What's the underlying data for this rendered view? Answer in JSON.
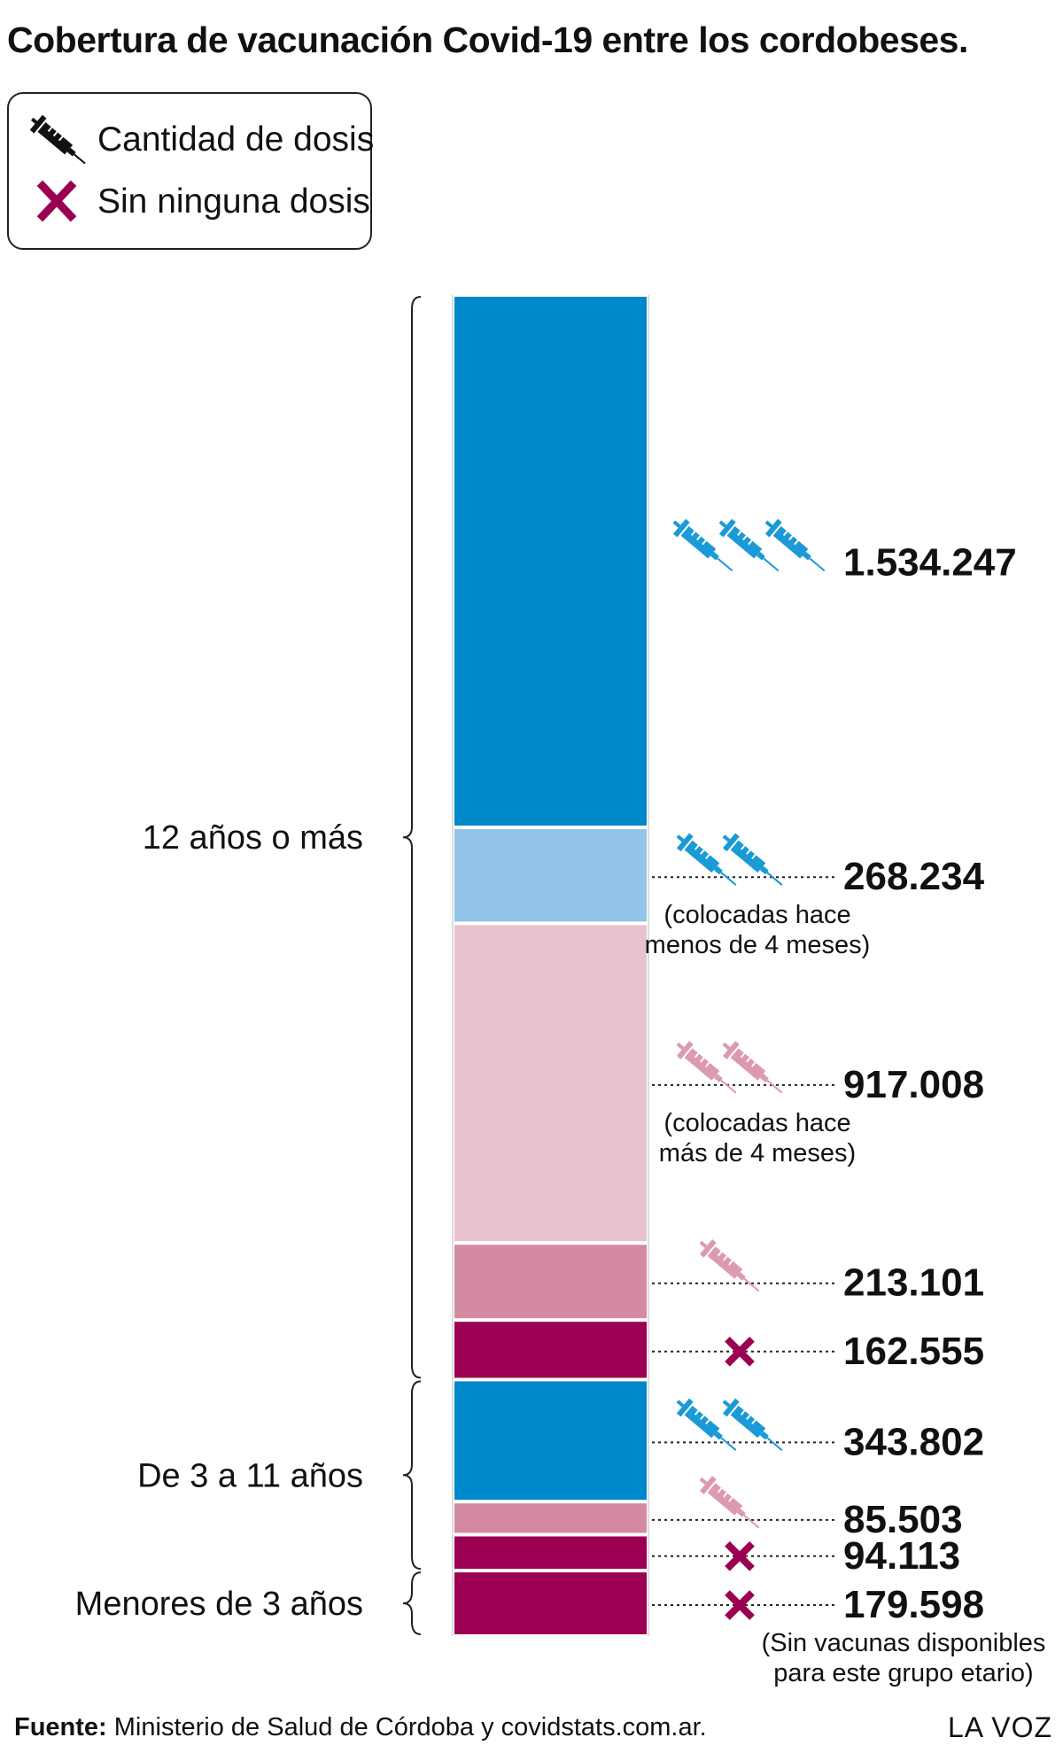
{
  "title": "Cobertura de vacunación Covid-19 entre los cordobeses.",
  "legend": {
    "items": [
      {
        "icon": "syringe-icon",
        "label": "Cantidad de dosis",
        "color": "#111111"
      },
      {
        "icon": "x-mark-icon",
        "label": "Sin ninguna dosis",
        "color": "#9c0052"
      }
    ]
  },
  "colors": {
    "blue_dark": "#0088cc",
    "blue_light": "#93c5ea",
    "pink_light": "#e8c3cd",
    "pink_mid": "#d48aa3",
    "magenta": "#9c0052"
  },
  "chart_data": {
    "type": "stacked-bar",
    "groups": [
      {
        "label": "12 años o más"
      },
      {
        "label": "De 3 a 11 años"
      },
      {
        "label": "Menores de 3 años"
      }
    ],
    "segments": [
      {
        "group": "12 años o más",
        "value": 1534247,
        "label": "1.534.247",
        "doses": 3,
        "icon_color": "#1a9ad6",
        "color": "#0088cc",
        "note": ""
      },
      {
        "group": "12 años o más",
        "value": 268234,
        "label": "268.234",
        "doses": 2,
        "icon_color": "#1a9ad6",
        "color": "#93c5ea",
        "note": "(colocadas hace\nmenos de 4 meses)"
      },
      {
        "group": "12 años o más",
        "value": 917008,
        "label": "917.008",
        "doses": 2,
        "icon_color": "#dc9ab0",
        "color": "#e8c3cd",
        "note": "(colocadas hace\nmás de 4 meses)"
      },
      {
        "group": "12 años o más",
        "value": 213101,
        "label": "213.101",
        "doses": 1,
        "icon_color": "#dc9ab0",
        "color": "#d48aa3",
        "note": ""
      },
      {
        "group": "12 años o más",
        "value": 162555,
        "label": "162.555",
        "doses": 0,
        "icon_color": "#9c0052",
        "color": "#9c0052",
        "note": ""
      },
      {
        "group": "De 3 a 11 años",
        "value": 343802,
        "label": "343.802",
        "doses": 2,
        "icon_color": "#1a9ad6",
        "color": "#0088cc",
        "note": ""
      },
      {
        "group": "De 3 a 11 años",
        "value": 85503,
        "label": "85.503",
        "doses": 1,
        "icon_color": "#dc9ab0",
        "color": "#d48aa3",
        "note": ""
      },
      {
        "group": "De 3 a 11 años",
        "value": 94113,
        "label": "94.113",
        "doses": 0,
        "icon_color": "#9c0052",
        "color": "#9c0052",
        "note": ""
      },
      {
        "group": "Menores de 3 años",
        "value": 179598,
        "label": "179.598",
        "doses": 0,
        "icon_color": "#9c0052",
        "color": "#9c0052",
        "note": "(Sin vacunas disponibles\npara este grupo etario)"
      }
    ]
  },
  "footer": {
    "source_prefix": "Fuente:",
    "source_text": " Ministerio de Salud de Córdoba y covidstats.com.ar.",
    "brand": "LA VOZ"
  }
}
